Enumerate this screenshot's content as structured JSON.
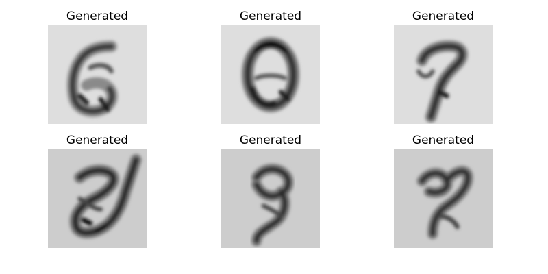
{
  "figure": {
    "panels": [
      {
        "title": "Generated"
      },
      {
        "title": "Generated"
      },
      {
        "title": "Generated"
      },
      {
        "title": "Generated"
      },
      {
        "title": "Generated"
      },
      {
        "title": "Generated"
      }
    ],
    "colormap": "gray",
    "background_colors": [
      "#dedede",
      "#cdcdcd"
    ]
  }
}
